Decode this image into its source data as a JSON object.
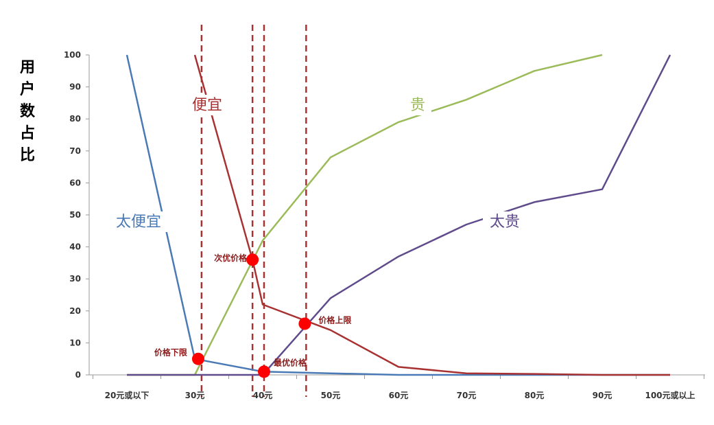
{
  "chart_data": {
    "type": "line",
    "ylabel": "用户数占比",
    "xlabel": "",
    "title": "",
    "ylim": [
      0,
      100
    ],
    "yticks": [
      0,
      10,
      20,
      30,
      40,
      50,
      60,
      70,
      80,
      90,
      100
    ],
    "grid": false,
    "categories": [
      "20元或以下",
      "30元",
      "40元",
      "50元",
      "60元",
      "70元",
      "80元",
      "90元",
      "100元或以上"
    ],
    "series": [
      {
        "name": "太便宜",
        "color": "#4a7ab5",
        "points": [
          [
            0,
            100
          ],
          [
            1,
            5
          ],
          [
            2,
            1
          ],
          [
            3,
            0.5
          ],
          [
            4,
            0
          ],
          [
            5,
            0
          ],
          [
            6,
            0
          ],
          [
            7,
            0
          ],
          [
            8,
            0
          ]
        ]
      },
      {
        "name": "便宜",
        "color": "#a83232",
        "points": [
          [
            1,
            100
          ],
          [
            1.85,
            36
          ],
          [
            2,
            22
          ],
          [
            3,
            14
          ],
          [
            4,
            2.5
          ],
          [
            5,
            0.5
          ],
          [
            6,
            0.3
          ],
          [
            7,
            0
          ],
          [
            8,
            0
          ]
        ]
      },
      {
        "name": "贵",
        "color": "#9bbb59",
        "points": [
          [
            0,
            0
          ],
          [
            1,
            0
          ],
          [
            2,
            42
          ],
          [
            3,
            68
          ],
          [
            4,
            79
          ],
          [
            5,
            86
          ],
          [
            6,
            95
          ],
          [
            7,
            100
          ]
        ]
      },
      {
        "name": "太贵",
        "color": "#5f4b8b",
        "points": [
          [
            0,
            0
          ],
          [
            1,
            0
          ],
          [
            2,
            0
          ],
          [
            3,
            24
          ],
          [
            4,
            37
          ],
          [
            5,
            47
          ],
          [
            6,
            54
          ],
          [
            7,
            58
          ],
          [
            8,
            100
          ]
        ]
      }
    ],
    "key_points": [
      {
        "label": "价格下限",
        "x": 1.05,
        "y": 5
      },
      {
        "label": "次优价格",
        "x": 1.85,
        "y": 36
      },
      {
        "label": "最优价格",
        "x": 2.02,
        "y": 1
      },
      {
        "label": "价格上限",
        "x": 2.62,
        "y": 16
      }
    ],
    "vertical_lines": [
      1.1,
      1.85,
      2.02,
      2.64
    ],
    "vertical_line_color": "#a83232",
    "key_point_color": "#ff0000"
  }
}
